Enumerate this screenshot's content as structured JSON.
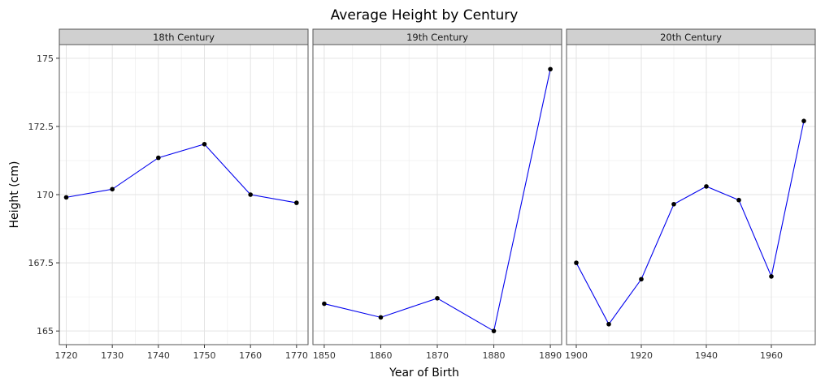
{
  "chart_data": {
    "type": "line",
    "title": "Average Height by Century",
    "xlabel": "Year of Birth",
    "ylabel": "Height (cm)",
    "ylim": [
      164.5,
      175.5
    ],
    "y_ticks": [
      165,
      167.5,
      170,
      172.5,
      175
    ],
    "y_tick_labels": [
      "165",
      "167.5",
      "170",
      "172.5",
      "175"
    ],
    "line_color": "#0000ee",
    "point_color": "#000000",
    "panels": [
      {
        "name": "18th Century",
        "x": [
          1720,
          1730,
          1740,
          1750,
          1760,
          1770
        ],
        "y": [
          169.9,
          170.2,
          171.35,
          171.85,
          170.0,
          169.7
        ],
        "xlim": [
          1718.5,
          1772.5
        ],
        "x_ticks": [
          1720,
          1730,
          1740,
          1750,
          1760,
          1770
        ]
      },
      {
        "name": "19th Century",
        "x": [
          1850,
          1860,
          1870,
          1880,
          1890
        ],
        "y": [
          166.0,
          165.5,
          166.2,
          165.0,
          174.6
        ],
        "xlim": [
          1848,
          1892
        ],
        "x_ticks": [
          1850,
          1860,
          1870,
          1880,
          1890
        ]
      },
      {
        "name": "20th Century",
        "x": [
          1900,
          1910,
          1920,
          1930,
          1940,
          1950,
          1960,
          1970
        ],
        "y": [
          167.5,
          165.25,
          166.9,
          169.65,
          170.3,
          169.8,
          167.0,
          172.7
        ],
        "xlim": [
          1897,
          1973.5
        ],
        "x_ticks": [
          1900,
          1920,
          1940,
          1960
        ]
      }
    ]
  }
}
